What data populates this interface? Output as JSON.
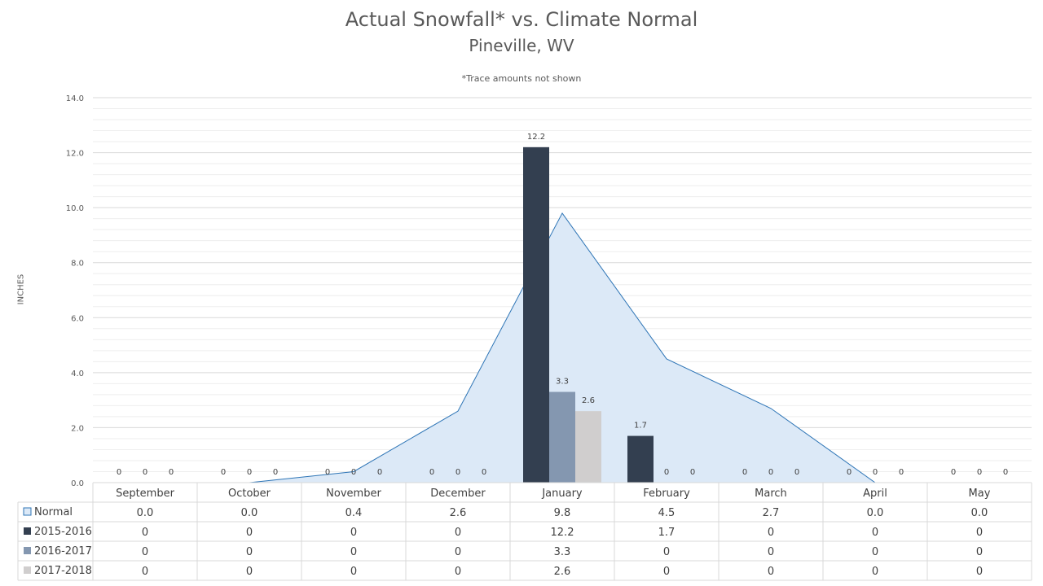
{
  "chart_data": {
    "type": "bar",
    "title": "Actual Snowfall* vs. Climate Normal",
    "subtitle": "Pineville, WV",
    "note": "*Trace amounts not shown",
    "ylabel": "INCHES",
    "ylim": [
      0,
      14
    ],
    "yticks": [
      "0.0",
      "2.0",
      "4.0",
      "6.0",
      "8.0",
      "10.0",
      "12.0",
      "14.0"
    ],
    "categories": [
      "September",
      "October",
      "November",
      "December",
      "January",
      "February",
      "March",
      "April",
      "May"
    ],
    "normal": {
      "name": "Normal",
      "type": "area",
      "values": [
        0.0,
        0.0,
        0.4,
        2.6,
        9.8,
        4.5,
        2.7,
        0.0,
        0.0
      ],
      "labels": [
        "0.0",
        "0.0",
        "0.4",
        "2.6",
        "9.8",
        "4.5",
        "2.7",
        "0.0",
        "0.0"
      ]
    },
    "series": [
      {
        "name": "2015-2016",
        "values": [
          0,
          0,
          0,
          0,
          12.2,
          1.7,
          0,
          0,
          0
        ],
        "labels": [
          "0",
          "0",
          "0",
          "0",
          "12.2",
          "1.7",
          "0",
          "0",
          "0"
        ]
      },
      {
        "name": "2016-2017",
        "values": [
          0,
          0,
          0,
          0,
          3.3,
          0,
          0,
          0,
          0
        ],
        "labels": [
          "0",
          "0",
          "0",
          "0",
          "3.3",
          "0",
          "0",
          "0",
          "0"
        ]
      },
      {
        "name": "2017-2018",
        "values": [
          0,
          0,
          0,
          0,
          2.6,
          0,
          0,
          0,
          0
        ],
        "labels": [
          "0",
          "0",
          "0",
          "0",
          "2.6",
          "0",
          "0",
          "0",
          "0"
        ]
      }
    ],
    "grid": true,
    "legend": "data-table"
  },
  "colors": {
    "normal_fill": "#dce9f7",
    "normal_line": "#2e75b6",
    "series": [
      "#333f50",
      "#8497b0",
      "#d0cece"
    ],
    "grid": "#d9d9d9",
    "text": "#595959",
    "table_border": "#d9d9d9"
  }
}
